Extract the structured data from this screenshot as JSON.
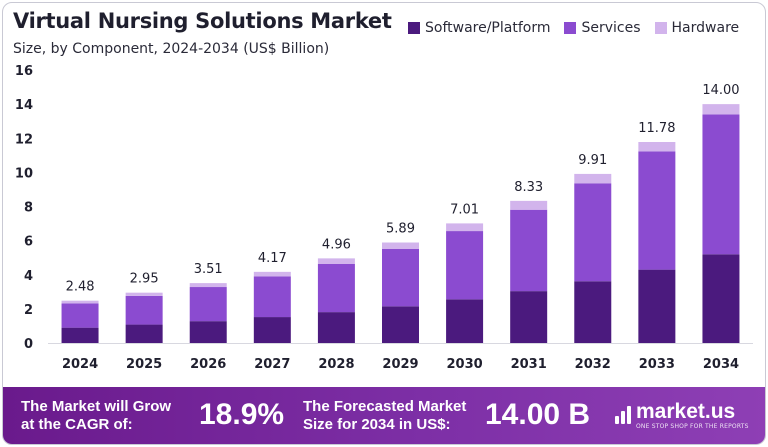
{
  "header": {
    "title": "Virtual Nursing Solutions Market",
    "subtitle": "Size, by Component, 2024-2034 (US$ Billion)"
  },
  "legend": [
    {
      "label": "Software/Platform",
      "color": "#4b1a7e"
    },
    {
      "label": "Services",
      "color": "#8b4bd0"
    },
    {
      "label": "Hardware",
      "color": "#d2b4ec"
    }
  ],
  "chart_data": {
    "type": "bar",
    "stacked": true,
    "categories": [
      "2024",
      "2025",
      "2026",
      "2027",
      "2028",
      "2029",
      "2030",
      "2031",
      "2032",
      "2033",
      "2034"
    ],
    "series": [
      {
        "name": "Software/Platform",
        "color": "#4b1a7e",
        "values": [
          0.9,
          1.08,
          1.28,
          1.52,
          1.81,
          2.15,
          2.56,
          3.04,
          3.62,
          4.3,
          5.2
        ]
      },
      {
        "name": "Services",
        "color": "#8b4bd0",
        "values": [
          1.42,
          1.68,
          2.0,
          2.38,
          2.82,
          3.36,
          4.0,
          4.77,
          5.74,
          6.93,
          8.2
        ]
      },
      {
        "name": "Hardware",
        "color": "#d2b4ec",
        "values": [
          0.16,
          0.19,
          0.23,
          0.27,
          0.33,
          0.38,
          0.45,
          0.52,
          0.55,
          0.55,
          0.6
        ]
      }
    ],
    "totals": [
      "2.48",
      "2.95",
      "3.51",
      "4.17",
      "4.96",
      "5.89",
      "7.01",
      "8.33",
      "9.91",
      "11.78",
      "14.00"
    ],
    "yticks": [
      0,
      2,
      4,
      6,
      8,
      10,
      12,
      14,
      16
    ],
    "ylim": [
      0,
      16
    ],
    "grid": false
  },
  "banner": {
    "cagr_text_line1": "The Market will Grow",
    "cagr_text_line2": "at the CAGR of:",
    "cagr_value": "18.9%",
    "forecast_text_line1": "The Forecasted Market",
    "forecast_text_line2": "Size for 2034 in US$:",
    "forecast_value": "14.00 B",
    "brand_name": "market.us",
    "brand_tagline": "ONE STOP SHOP FOR THE REPORTS"
  }
}
